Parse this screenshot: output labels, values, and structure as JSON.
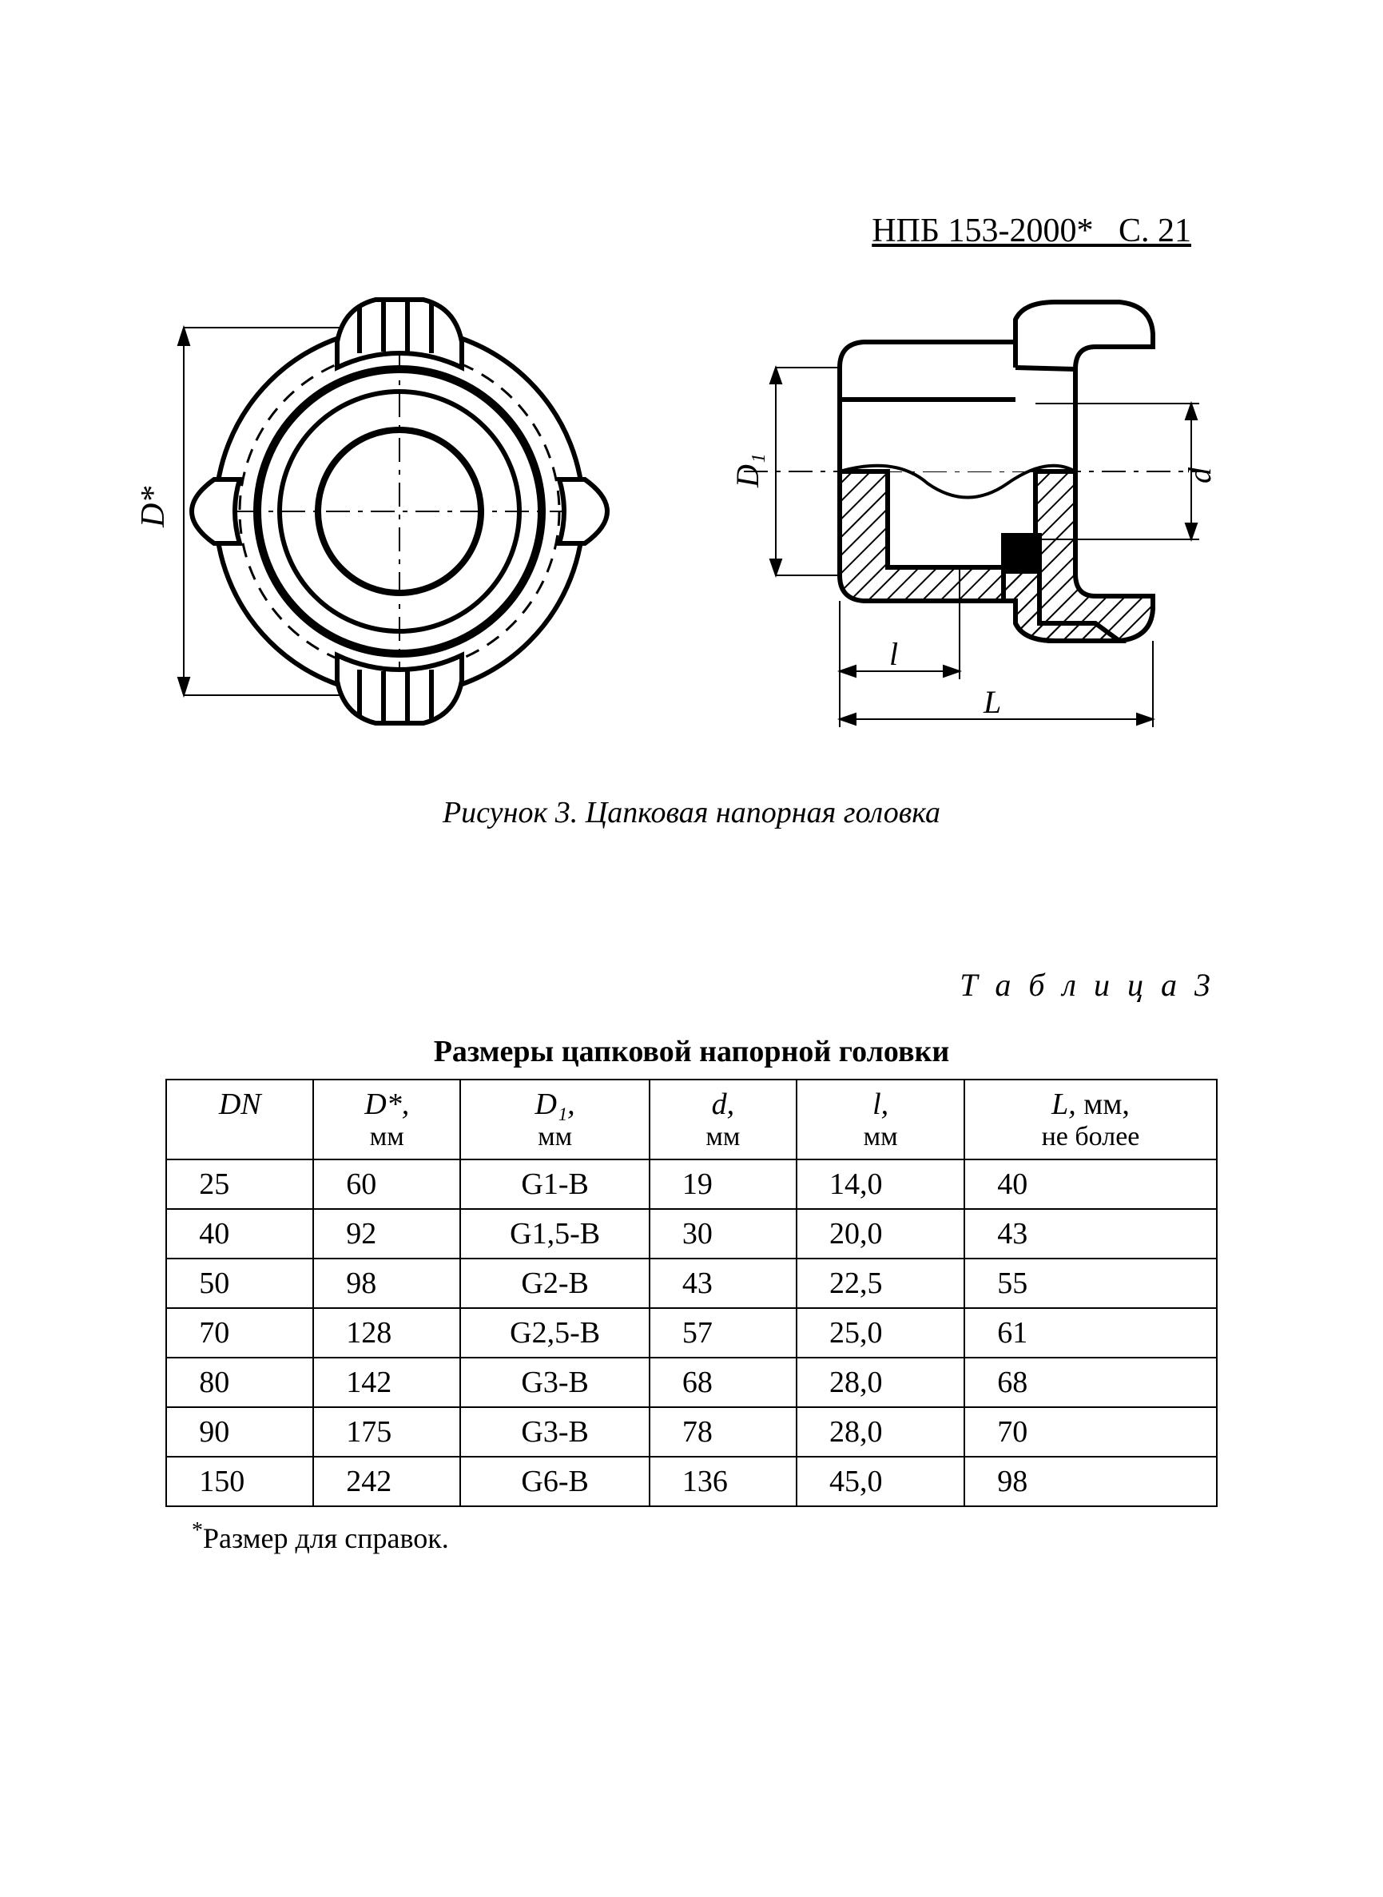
{
  "header": {
    "doc_code": "НПБ 153-2000*",
    "page": "С. 21"
  },
  "figure": {
    "caption": "Рисунок 3. Цапковая напорная головка",
    "labels": {
      "D_star": "D*",
      "D1": "D₁",
      "d": "d",
      "l": "l",
      "L": "L"
    },
    "stroke_color": "#000000",
    "hatch_color": "#000000",
    "bg_color": "#ffffff",
    "stroke_main": 6,
    "stroke_thin": 2
  },
  "table": {
    "label": "Т а б л и ц а   3",
    "title": "Размеры цапковой напорной головки",
    "columns": [
      {
        "head_it": "DN",
        "unit": ""
      },
      {
        "head_it": "D*,",
        "unit": "мм"
      },
      {
        "head_it": "D₁,",
        "unit": "мм"
      },
      {
        "head_it": "d,",
        "unit": "мм"
      },
      {
        "head_it": "l,",
        "unit": "мм"
      },
      {
        "head_it": "L, ",
        "unit_inline": "мм,",
        "unit": "не более"
      }
    ],
    "col_widths_pct": [
      14,
      14,
      18,
      14,
      16,
      24
    ],
    "rows": [
      [
        "25",
        "60",
        "G1-B",
        "19",
        "14,0",
        "40"
      ],
      [
        "40",
        "92",
        "G1,5-B",
        "30",
        "20,0",
        "43"
      ],
      [
        "50",
        "98",
        "G2-B",
        "43",
        "22,5",
        "55"
      ],
      [
        "70",
        "128",
        "G2,5-B",
        "57",
        "25,0",
        "61"
      ],
      [
        "80",
        "142",
        "G3-B",
        "68",
        "28,0",
        "68"
      ],
      [
        "90",
        "175",
        "G3-B",
        "78",
        "28,0",
        "70"
      ],
      [
        "150",
        "242",
        "G6-B",
        "136",
        "45,0",
        "98"
      ]
    ],
    "border_color": "#000000",
    "header_fontsize_pt": 38,
    "cell_fontsize_pt": 38
  },
  "footnote": {
    "marker": "*",
    "text": "Размер для справок."
  }
}
